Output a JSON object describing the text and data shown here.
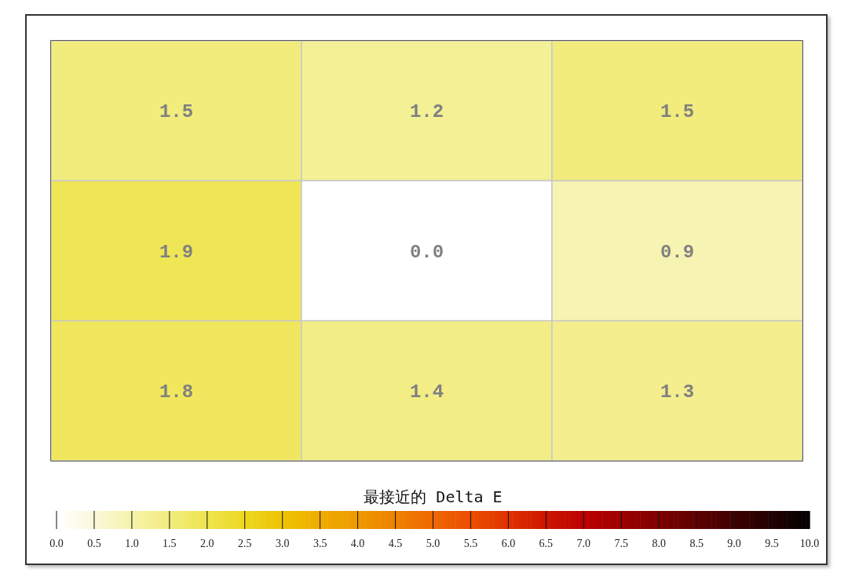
{
  "chart_data": {
    "type": "heatmap",
    "categories": [
      null,
      null,
      null
    ],
    "y_categories": [
      null,
      null,
      null
    ],
    "cells": [
      [
        1.5,
        1.2,
        1.5
      ],
      [
        1.9,
        0.0,
        0.9
      ],
      [
        1.8,
        1.4,
        1.3
      ]
    ],
    "cell_labels": [
      [
        "1.5",
        "1.2",
        "1.5"
      ],
      [
        "1.9",
        "0.0",
        "0.9"
      ],
      [
        "1.8",
        "1.4",
        "1.3"
      ]
    ],
    "clabel": "最接近的 Delta E",
    "clim": [
      0,
      10
    ],
    "cticks": [
      {
        "value": 0,
        "label": "0.0"
      },
      {
        "value": 0.5,
        "label": "0.5"
      },
      {
        "value": 1,
        "label": "1.0"
      },
      {
        "value": 1.5,
        "label": "1.5"
      },
      {
        "value": 2,
        "label": "2.0"
      },
      {
        "value": 2.5,
        "label": "2.5"
      },
      {
        "value": 3,
        "label": "3.0"
      },
      {
        "value": 3.5,
        "label": "3.5"
      },
      {
        "value": 4,
        "label": "4.0"
      },
      {
        "value": 4.5,
        "label": "4.5"
      },
      {
        "value": 5,
        "label": "5.0"
      },
      {
        "value": 5.5,
        "label": "5.5"
      },
      {
        "value": 6,
        "label": "6.0"
      },
      {
        "value": 6.5,
        "label": "6.5"
      },
      {
        "value": 7,
        "label": "7.0"
      },
      {
        "value": 7.5,
        "label": "7.5"
      },
      {
        "value": 8,
        "label": "8.0"
      },
      {
        "value": 8.5,
        "label": "8.5"
      },
      {
        "value": 9,
        "label": "9.0"
      },
      {
        "value": 9.5,
        "label": "9.5"
      },
      {
        "value": 10,
        "label": "10.0"
      }
    ],
    "tick_labels": false
  }
}
